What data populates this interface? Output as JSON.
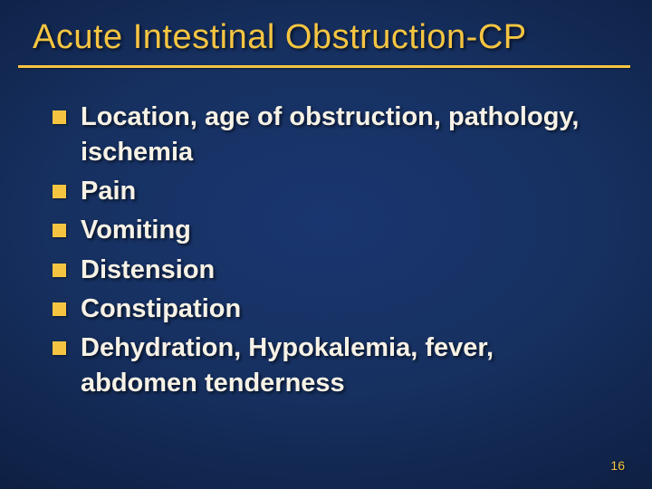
{
  "title": "Acute Intestinal Obstruction-CP",
  "bullets": [
    "Location, age of obstruction, pathology, ischemia",
    "Pain",
    "Vomiting",
    "Distension",
    "Constipation",
    "Dehydration, Hypokalemia, fever, abdomen tenderness"
  ],
  "pageNumber": "16",
  "colors": {
    "accent": "#f5c542",
    "text": "#f7f2e6",
    "bgCenter": "#1a3670",
    "bgEdge": "#081228"
  },
  "fonts": {
    "titleSize": 38,
    "bodySize": 29,
    "pageNumSize": 14
  }
}
